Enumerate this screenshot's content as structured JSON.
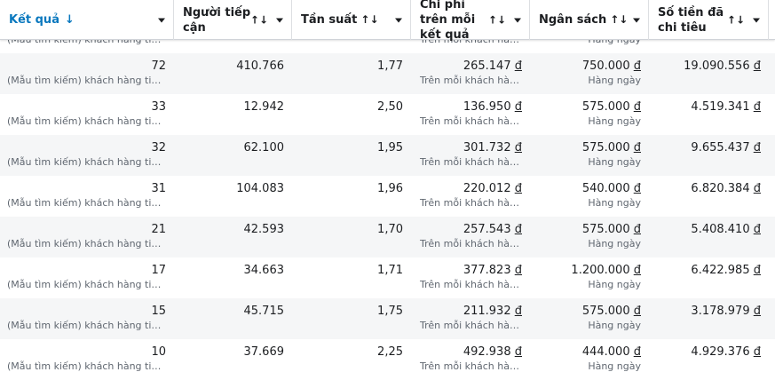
{
  "headers": [
    {
      "label": "Kết quả",
      "sort": "↓",
      "active": true
    },
    {
      "label": "Người tiếp cận",
      "sort": "↑↓"
    },
    {
      "label": "Tần suất",
      "sort": "↑↓"
    },
    {
      "label": "Chi phí trên mỗi kết quả",
      "sort": "↑↓"
    },
    {
      "label": "Ngân sách",
      "sort": "↑↓"
    },
    {
      "label": "Số tiền đã chi tiêu",
      "sort": "↑↓"
    }
  ],
  "currency": "đ",
  "result_sub": "(Mẫu tìm kiếm) khách hàng tiề...",
  "cpr_sub": "Trên mỗi khách hàn...",
  "budget_sub": "Hàng ngày",
  "rows": [
    {
      "results": "72",
      "reach": "410.766",
      "freq": "1,77",
      "cpr": "265.147",
      "budget": "750.000",
      "spent": "19.090.556"
    },
    {
      "results": "33",
      "reach": "12.942",
      "freq": "2,50",
      "cpr": "136.950",
      "budget": "575.000",
      "spent": "4.519.341"
    },
    {
      "results": "32",
      "reach": "62.100",
      "freq": "1,95",
      "cpr": "301.732",
      "budget": "575.000",
      "spent": "9.655.437"
    },
    {
      "results": "31",
      "reach": "104.083",
      "freq": "1,96",
      "cpr": "220.012",
      "budget": "540.000",
      "spent": "6.820.384"
    },
    {
      "results": "21",
      "reach": "42.593",
      "freq": "1,70",
      "cpr": "257.543",
      "budget": "575.000",
      "spent": "5.408.410"
    },
    {
      "results": "17",
      "reach": "34.663",
      "freq": "1,71",
      "cpr": "377.823",
      "budget": "1.200.000",
      "spent": "6.422.985"
    },
    {
      "results": "15",
      "reach": "45.715",
      "freq": "1,75",
      "cpr": "211.932",
      "budget": "575.000",
      "spent": "3.178.979"
    },
    {
      "results": "10",
      "reach": "37.669",
      "freq": "2,25",
      "cpr": "492.938",
      "budget": "444.000",
      "spent": "4.929.376"
    }
  ]
}
